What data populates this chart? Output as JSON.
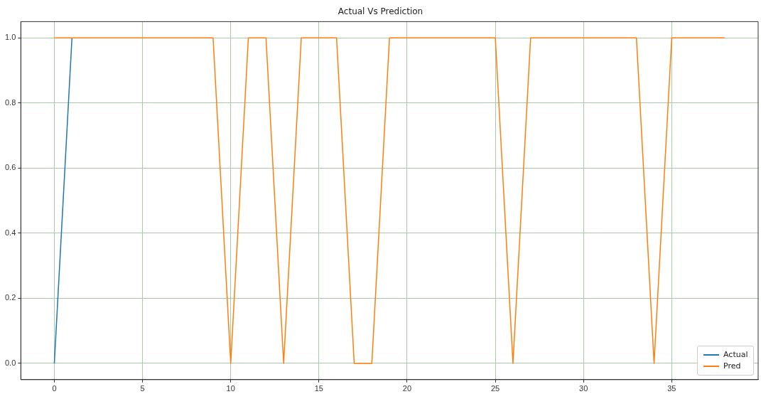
{
  "chart_data": {
    "type": "line",
    "title": "Actual Vs Prediction",
    "x": [
      0,
      1,
      2,
      3,
      4,
      5,
      6,
      7,
      8,
      9,
      10,
      11,
      12,
      13,
      14,
      15,
      16,
      17,
      18,
      19,
      20,
      21,
      22,
      23,
      24,
      25,
      26,
      27,
      28,
      29,
      30,
      31,
      32,
      33,
      34,
      35,
      36,
      37,
      38
    ],
    "series": [
      {
        "name": "Actual",
        "color": "#1f77b4",
        "values": [
          0,
          1,
          null,
          null,
          null,
          null,
          null,
          null,
          null,
          null,
          null,
          null,
          null,
          null,
          null,
          null,
          null,
          null,
          null,
          null,
          null,
          null,
          null,
          null,
          null,
          null,
          null,
          null,
          null,
          null,
          null,
          null,
          null,
          null,
          null,
          null,
          null,
          null,
          null
        ]
      },
      {
        "name": "Pred",
        "color": "#ff7f0e",
        "values": [
          1,
          1,
          1,
          1,
          1,
          1,
          1,
          1,
          1,
          1,
          0,
          1,
          1,
          0,
          1,
          1,
          1,
          0,
          0,
          1,
          1,
          1,
          1,
          1,
          1,
          1,
          0,
          1,
          1,
          1,
          1,
          1,
          1,
          1,
          0,
          1,
          1,
          1,
          1
        ]
      }
    ],
    "xlim": [
      -1.9,
      39.9
    ],
    "xticks": [
      0,
      5,
      10,
      15,
      20,
      25,
      30,
      35
    ],
    "ylim": [
      -0.05,
      1.05
    ],
    "yticks": [
      {
        "value": 0,
        "label": "0.0"
      },
      {
        "value": 0.2,
        "label": "0.2"
      },
      {
        "value": 0.4,
        "label": "0.4"
      },
      {
        "value": 0.6,
        "label": "0.6"
      },
      {
        "value": 0.8,
        "label": "0.8"
      },
      {
        "value": 1,
        "label": "1.0"
      }
    ],
    "grid": true,
    "legend": "bottom right",
    "marker": "none",
    "line_style": "solid"
  }
}
